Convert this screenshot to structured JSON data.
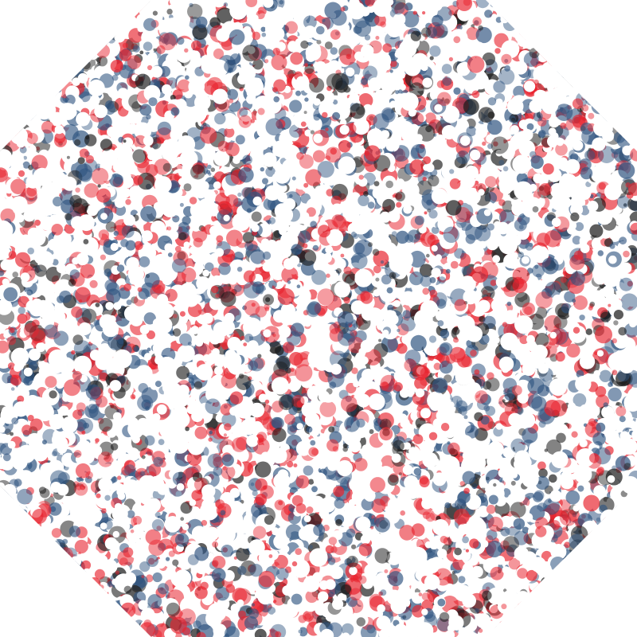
{
  "artwork": {
    "shape": "octagon",
    "background": "#ffffff",
    "palette": {
      "red": "#e8232e",
      "blue": "#2f5480",
      "black": "#1a1a1a",
      "white": "#ffffff"
    },
    "dot_alpha": 0.62,
    "white_dot_alpha": 1.0
  }
}
